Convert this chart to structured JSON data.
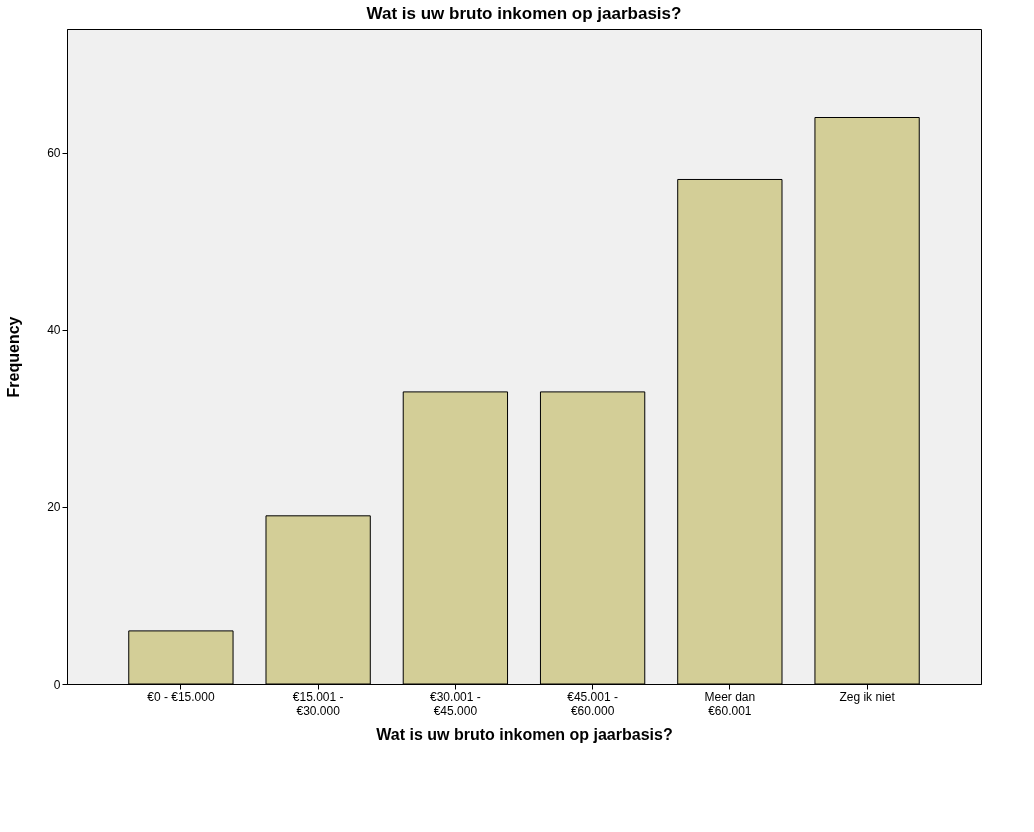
{
  "chart_data": {
    "type": "bar",
    "title": "Wat is uw bruto inkomen op jaarbasis?",
    "xlabel": "Wat is uw bruto inkomen op jaarbasis?",
    "ylabel": "Frequency",
    "categories": [
      "€0 - €15.000",
      "€15.001 -\n€30.000",
      "€30.001 -\n€45.000",
      "€45.001 -\n€60.000",
      "Meer dan\n€60.001",
      "Zeg ik niet"
    ],
    "values": [
      6,
      19,
      33,
      33,
      57,
      64
    ],
    "color": "#d3ce97",
    "ylim": [
      0,
      74
    ],
    "yticks": [
      0,
      20,
      40,
      60
    ],
    "grid": false
  }
}
